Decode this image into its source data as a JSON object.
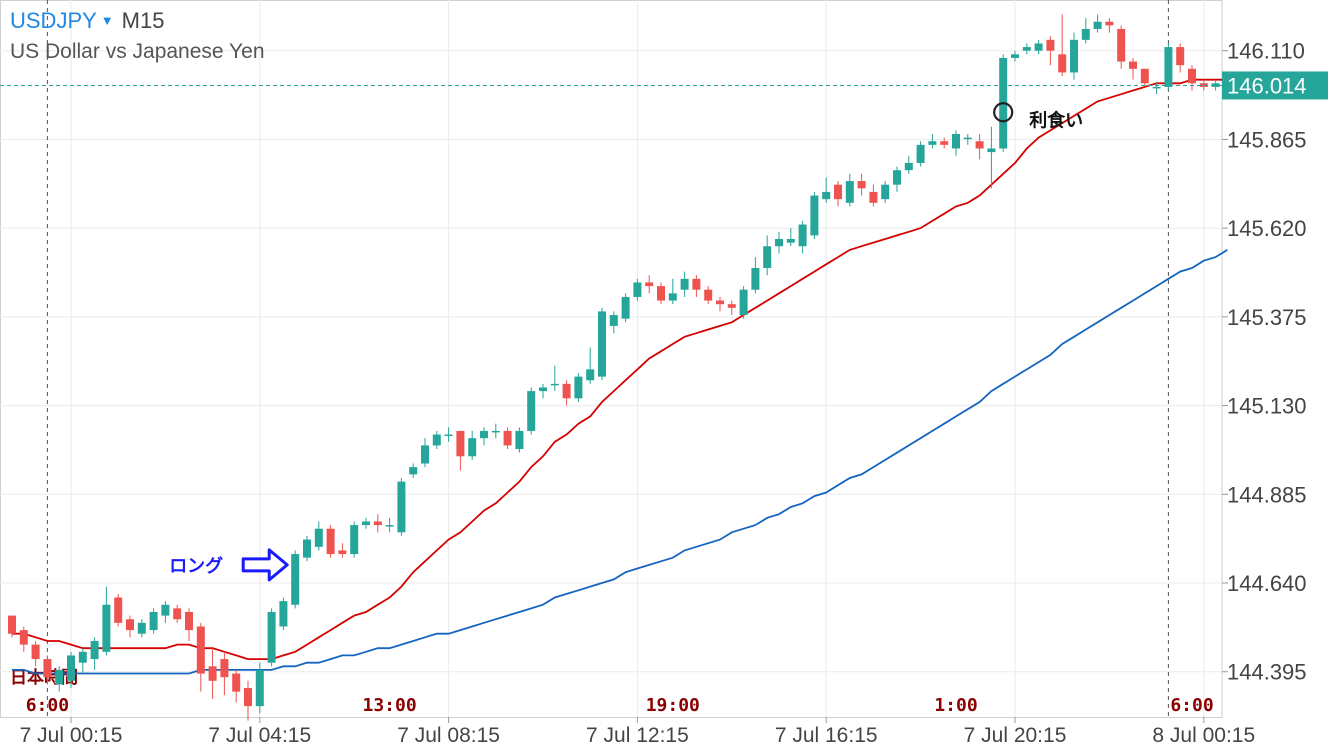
{
  "header": {
    "symbol": "USDJPY",
    "dropdown_glyph": "▼",
    "timeframe": "M15",
    "description": "US Dollar vs Japanese Yen"
  },
  "colors": {
    "bull": "#26a69a",
    "bear": "#ef5350",
    "ma_fast": "#d50000",
    "ma_slow": "#1565c0",
    "price_tag": "#26a69a",
    "grid": "#ebebeb",
    "axis_text": "#444444",
    "session_text": "#8b0000",
    "annotation_long": "#1a1aff"
  },
  "chart_data": {
    "type": "candlestick",
    "symbol": "USDJPY",
    "timeframe": "M15",
    "ylim": [
      144.27,
      146.25
    ],
    "yticks": [
      144.395,
      144.64,
      144.885,
      145.13,
      145.375,
      145.62,
      145.865,
      146.11
    ],
    "ytick_labels": [
      "144.395",
      "144.640",
      "144.885",
      "145.130",
      "145.375",
      "145.620",
      "145.865",
      "146.110"
    ],
    "current_price": 146.014,
    "current_price_label": "146.014",
    "xtick_labels": [
      "7 Jul 00:15",
      "7 Jul 04:15",
      "7 Jul 08:15",
      "7 Jul 12:15",
      "7 Jul 16:15",
      "7 Jul 20:15",
      "8 Jul 00:15"
    ],
    "xtick_bar_index": [
      5,
      21,
      37,
      53,
      69,
      85,
      101
    ],
    "session_label_title": "日本時間",
    "session_labels": [
      "6:00",
      "13:00",
      "19:00",
      "1:00",
      "6:00"
    ],
    "session_bar_index": [
      3,
      32,
      56,
      80,
      100
    ],
    "session_lines_bar_index": [
      3,
      98
    ],
    "candles": [
      [
        144.55,
        144.5,
        144.55,
        144.49
      ],
      [
        144.51,
        144.47,
        144.52,
        144.45
      ],
      [
        144.47,
        144.43,
        144.48,
        144.41
      ],
      [
        144.43,
        144.38,
        144.44,
        144.36
      ],
      [
        144.36,
        144.4,
        144.41,
        144.34
      ],
      [
        144.37,
        144.44,
        144.45,
        144.35
      ],
      [
        144.42,
        144.45,
        144.46,
        144.39
      ],
      [
        144.43,
        144.48,
        144.49,
        144.4
      ],
      [
        144.45,
        144.58,
        144.63,
        144.44
      ],
      [
        144.6,
        144.53,
        144.61,
        144.52
      ],
      [
        144.54,
        144.51,
        144.55,
        144.49
      ],
      [
        144.5,
        144.53,
        144.54,
        144.49
      ],
      [
        144.51,
        144.56,
        144.57,
        144.5
      ],
      [
        144.55,
        144.58,
        144.59,
        144.53
      ],
      [
        144.57,
        144.54,
        144.58,
        144.53
      ],
      [
        144.56,
        144.51,
        144.57,
        144.48
      ],
      [
        144.52,
        144.39,
        144.53,
        144.34
      ],
      [
        144.41,
        144.37,
        144.46,
        144.32
      ],
      [
        144.43,
        144.38,
        144.45,
        144.33
      ],
      [
        144.39,
        144.34,
        144.4,
        144.31
      ],
      [
        144.35,
        144.3,
        144.37,
        144.26
      ],
      [
        144.3,
        144.4,
        144.42,
        144.28
      ],
      [
        144.42,
        144.56,
        144.57,
        144.41
      ],
      [
        144.52,
        144.59,
        144.6,
        144.51
      ],
      [
        144.58,
        144.72,
        144.73,
        144.57
      ],
      [
        144.71,
        144.76,
        144.77,
        144.7
      ],
      [
        144.74,
        144.79,
        144.81,
        144.73
      ],
      [
        144.79,
        144.72,
        144.8,
        144.71
      ],
      [
        144.73,
        144.72,
        144.75,
        144.71
      ],
      [
        144.72,
        144.8,
        144.81,
        144.71
      ],
      [
        144.8,
        144.81,
        144.82,
        144.79
      ],
      [
        144.81,
        144.8,
        144.83,
        144.78
      ],
      [
        144.8,
        144.8,
        144.82,
        144.78
      ],
      [
        144.78,
        144.92,
        144.93,
        144.77
      ],
      [
        144.94,
        144.96,
        144.97,
        144.93
      ],
      [
        144.97,
        145.02,
        145.04,
        144.96
      ],
      [
        145.02,
        145.05,
        145.06,
        145.01
      ],
      [
        145.05,
        145.05,
        145.07,
        145.03
      ],
      [
        145.06,
        144.99,
        145.06,
        144.95
      ],
      [
        144.99,
        145.04,
        145.06,
        144.98
      ],
      [
        145.04,
        145.06,
        145.07,
        145.02
      ],
      [
        145.06,
        145.06,
        145.08,
        145.04
      ],
      [
        145.06,
        145.02,
        145.07,
        145.01
      ],
      [
        145.01,
        145.06,
        145.07,
        145.0
      ],
      [
        145.06,
        145.17,
        145.18,
        145.05
      ],
      [
        145.17,
        145.18,
        145.19,
        145.15
      ],
      [
        145.19,
        145.19,
        145.24,
        145.17
      ],
      [
        145.19,
        145.15,
        145.2,
        145.13
      ],
      [
        145.15,
        145.21,
        145.22,
        145.14
      ],
      [
        145.2,
        145.23,
        145.29,
        145.19
      ],
      [
        145.21,
        145.39,
        145.4,
        145.2
      ],
      [
        145.35,
        145.38,
        145.39,
        145.33
      ],
      [
        145.37,
        145.43,
        145.44,
        145.36
      ],
      [
        145.43,
        145.47,
        145.48,
        145.42
      ],
      [
        145.47,
        145.46,
        145.49,
        145.44
      ],
      [
        145.46,
        145.42,
        145.47,
        145.41
      ],
      [
        145.42,
        145.44,
        145.48,
        145.41
      ],
      [
        145.45,
        145.48,
        145.5,
        145.43
      ],
      [
        145.48,
        145.45,
        145.49,
        145.43
      ],
      [
        145.45,
        145.42,
        145.46,
        145.41
      ],
      [
        145.42,
        145.41,
        145.43,
        145.39
      ],
      [
        145.41,
        145.4,
        145.42,
        145.38
      ],
      [
        145.38,
        145.45,
        145.46,
        145.37
      ],
      [
        145.45,
        145.51,
        145.54,
        145.44
      ],
      [
        145.51,
        145.57,
        145.6,
        145.49
      ],
      [
        145.57,
        145.59,
        145.61,
        145.55
      ],
      [
        145.58,
        145.59,
        145.62,
        145.57
      ],
      [
        145.57,
        145.63,
        145.64,
        145.55
      ],
      [
        145.6,
        145.71,
        145.72,
        145.59
      ],
      [
        145.7,
        145.72,
        145.76,
        145.69
      ],
      [
        145.74,
        145.7,
        145.75,
        145.68
      ],
      [
        145.69,
        145.75,
        145.77,
        145.68
      ],
      [
        145.75,
        145.73,
        145.77,
        145.71
      ],
      [
        145.72,
        145.69,
        145.74,
        145.68
      ],
      [
        145.7,
        145.74,
        145.75,
        145.69
      ],
      [
        145.74,
        145.78,
        145.79,
        145.72
      ],
      [
        145.78,
        145.8,
        145.82,
        145.77
      ],
      [
        145.8,
        145.85,
        145.86,
        145.79
      ],
      [
        145.85,
        145.86,
        145.88,
        145.84
      ],
      [
        145.86,
        145.85,
        145.87,
        145.84
      ],
      [
        145.84,
        145.88,
        145.89,
        145.82
      ],
      [
        145.87,
        145.87,
        145.88,
        145.85
      ],
      [
        145.86,
        145.84,
        145.88,
        145.81
      ],
      [
        145.83,
        145.84,
        145.9,
        145.73
      ],
      [
        145.84,
        146.09,
        146.1,
        145.83
      ],
      [
        146.09,
        146.1,
        146.11,
        146.08
      ],
      [
        146.11,
        146.12,
        146.13,
        146.1
      ],
      [
        146.11,
        146.13,
        146.14,
        146.1
      ],
      [
        146.14,
        146.11,
        146.15,
        146.07
      ],
      [
        146.1,
        146.05,
        146.21,
        146.04
      ],
      [
        146.05,
        146.14,
        146.16,
        146.03
      ],
      [
        146.14,
        146.17,
        146.2,
        146.13
      ],
      [
        146.17,
        146.19,
        146.21,
        146.16
      ],
      [
        146.19,
        146.18,
        146.2,
        146.16
      ],
      [
        146.17,
        146.08,
        146.18,
        146.06
      ],
      [
        146.08,
        146.06,
        146.09,
        146.03
      ],
      [
        146.06,
        146.02,
        146.06,
        146.01
      ],
      [
        146.01,
        146.01,
        146.02,
        145.99
      ],
      [
        146.01,
        146.12,
        146.13,
        146.0
      ],
      [
        146.12,
        146.07,
        146.13,
        146.05
      ],
      [
        146.06,
        146.02,
        146.07,
        146.0
      ],
      [
        146.02,
        146.01,
        146.03,
        146.0
      ],
      [
        146.01,
        146.02,
        146.03,
        146.0
      ],
      [
        146.02,
        146.01,
        146.03,
        146.0
      ]
    ],
    "ma_fast_values": [
      144.5,
      144.5,
      144.49,
      144.48,
      144.48,
      144.47,
      144.46,
      144.46,
      144.46,
      144.46,
      144.46,
      144.46,
      144.46,
      144.46,
      144.47,
      144.47,
      144.46,
      144.46,
      144.45,
      144.44,
      144.43,
      144.43,
      144.43,
      144.44,
      144.45,
      144.47,
      144.49,
      144.51,
      144.53,
      144.55,
      144.56,
      144.58,
      144.6,
      144.63,
      144.67,
      144.7,
      144.73,
      144.76,
      144.78,
      144.81,
      144.84,
      144.86,
      144.89,
      144.92,
      144.96,
      144.99,
      145.03,
      145.05,
      145.08,
      145.1,
      145.14,
      145.17,
      145.2,
      145.23,
      145.26,
      145.28,
      145.3,
      145.32,
      145.33,
      145.34,
      145.35,
      145.36,
      145.38,
      145.4,
      145.42,
      145.44,
      145.46,
      145.48,
      145.5,
      145.52,
      145.54,
      145.56,
      145.57,
      145.58,
      145.59,
      145.6,
      145.61,
      145.62,
      145.64,
      145.66,
      145.68,
      145.69,
      145.71,
      145.74,
      145.77,
      145.8,
      145.84,
      145.87,
      145.89,
      145.91,
      145.93,
      145.95,
      145.97,
      145.98,
      145.99,
      146.0,
      146.01,
      146.02,
      146.02,
      146.02,
      146.03,
      146.03,
      146.03,
      146.03
    ],
    "ma_slow_values": [
      144.4,
      144.4,
      144.39,
      144.39,
      144.39,
      144.39,
      144.39,
      144.39,
      144.39,
      144.39,
      144.39,
      144.39,
      144.39,
      144.39,
      144.39,
      144.39,
      144.4,
      144.4,
      144.4,
      144.4,
      144.4,
      144.4,
      144.4,
      144.41,
      144.41,
      144.42,
      144.42,
      144.43,
      144.44,
      144.44,
      144.45,
      144.46,
      144.46,
      144.47,
      144.48,
      144.49,
      144.5,
      144.5,
      144.51,
      144.52,
      144.53,
      144.54,
      144.55,
      144.56,
      144.57,
      144.58,
      144.6,
      144.61,
      144.62,
      144.63,
      144.64,
      144.65,
      144.67,
      144.68,
      144.69,
      144.7,
      144.71,
      144.73,
      144.74,
      144.75,
      144.76,
      144.78,
      144.79,
      144.8,
      144.82,
      144.83,
      144.85,
      144.86,
      144.88,
      144.89,
      144.91,
      144.93,
      144.94,
      144.96,
      144.98,
      145.0,
      145.02,
      145.04,
      145.06,
      145.08,
      145.1,
      145.12,
      145.14,
      145.17,
      145.19,
      145.21,
      145.23,
      145.25,
      145.27,
      145.3,
      145.32,
      145.34,
      145.36,
      145.38,
      145.4,
      145.42,
      145.44,
      145.46,
      145.48,
      145.5,
      145.51,
      145.53,
      145.54,
      145.56
    ],
    "annotations": {
      "long_label": "ロング",
      "long_bar_index": 24,
      "long_price": 144.69,
      "take_profit_label": "利食い",
      "take_profit_bar_index": 84,
      "take_profit_price": 145.94
    }
  }
}
